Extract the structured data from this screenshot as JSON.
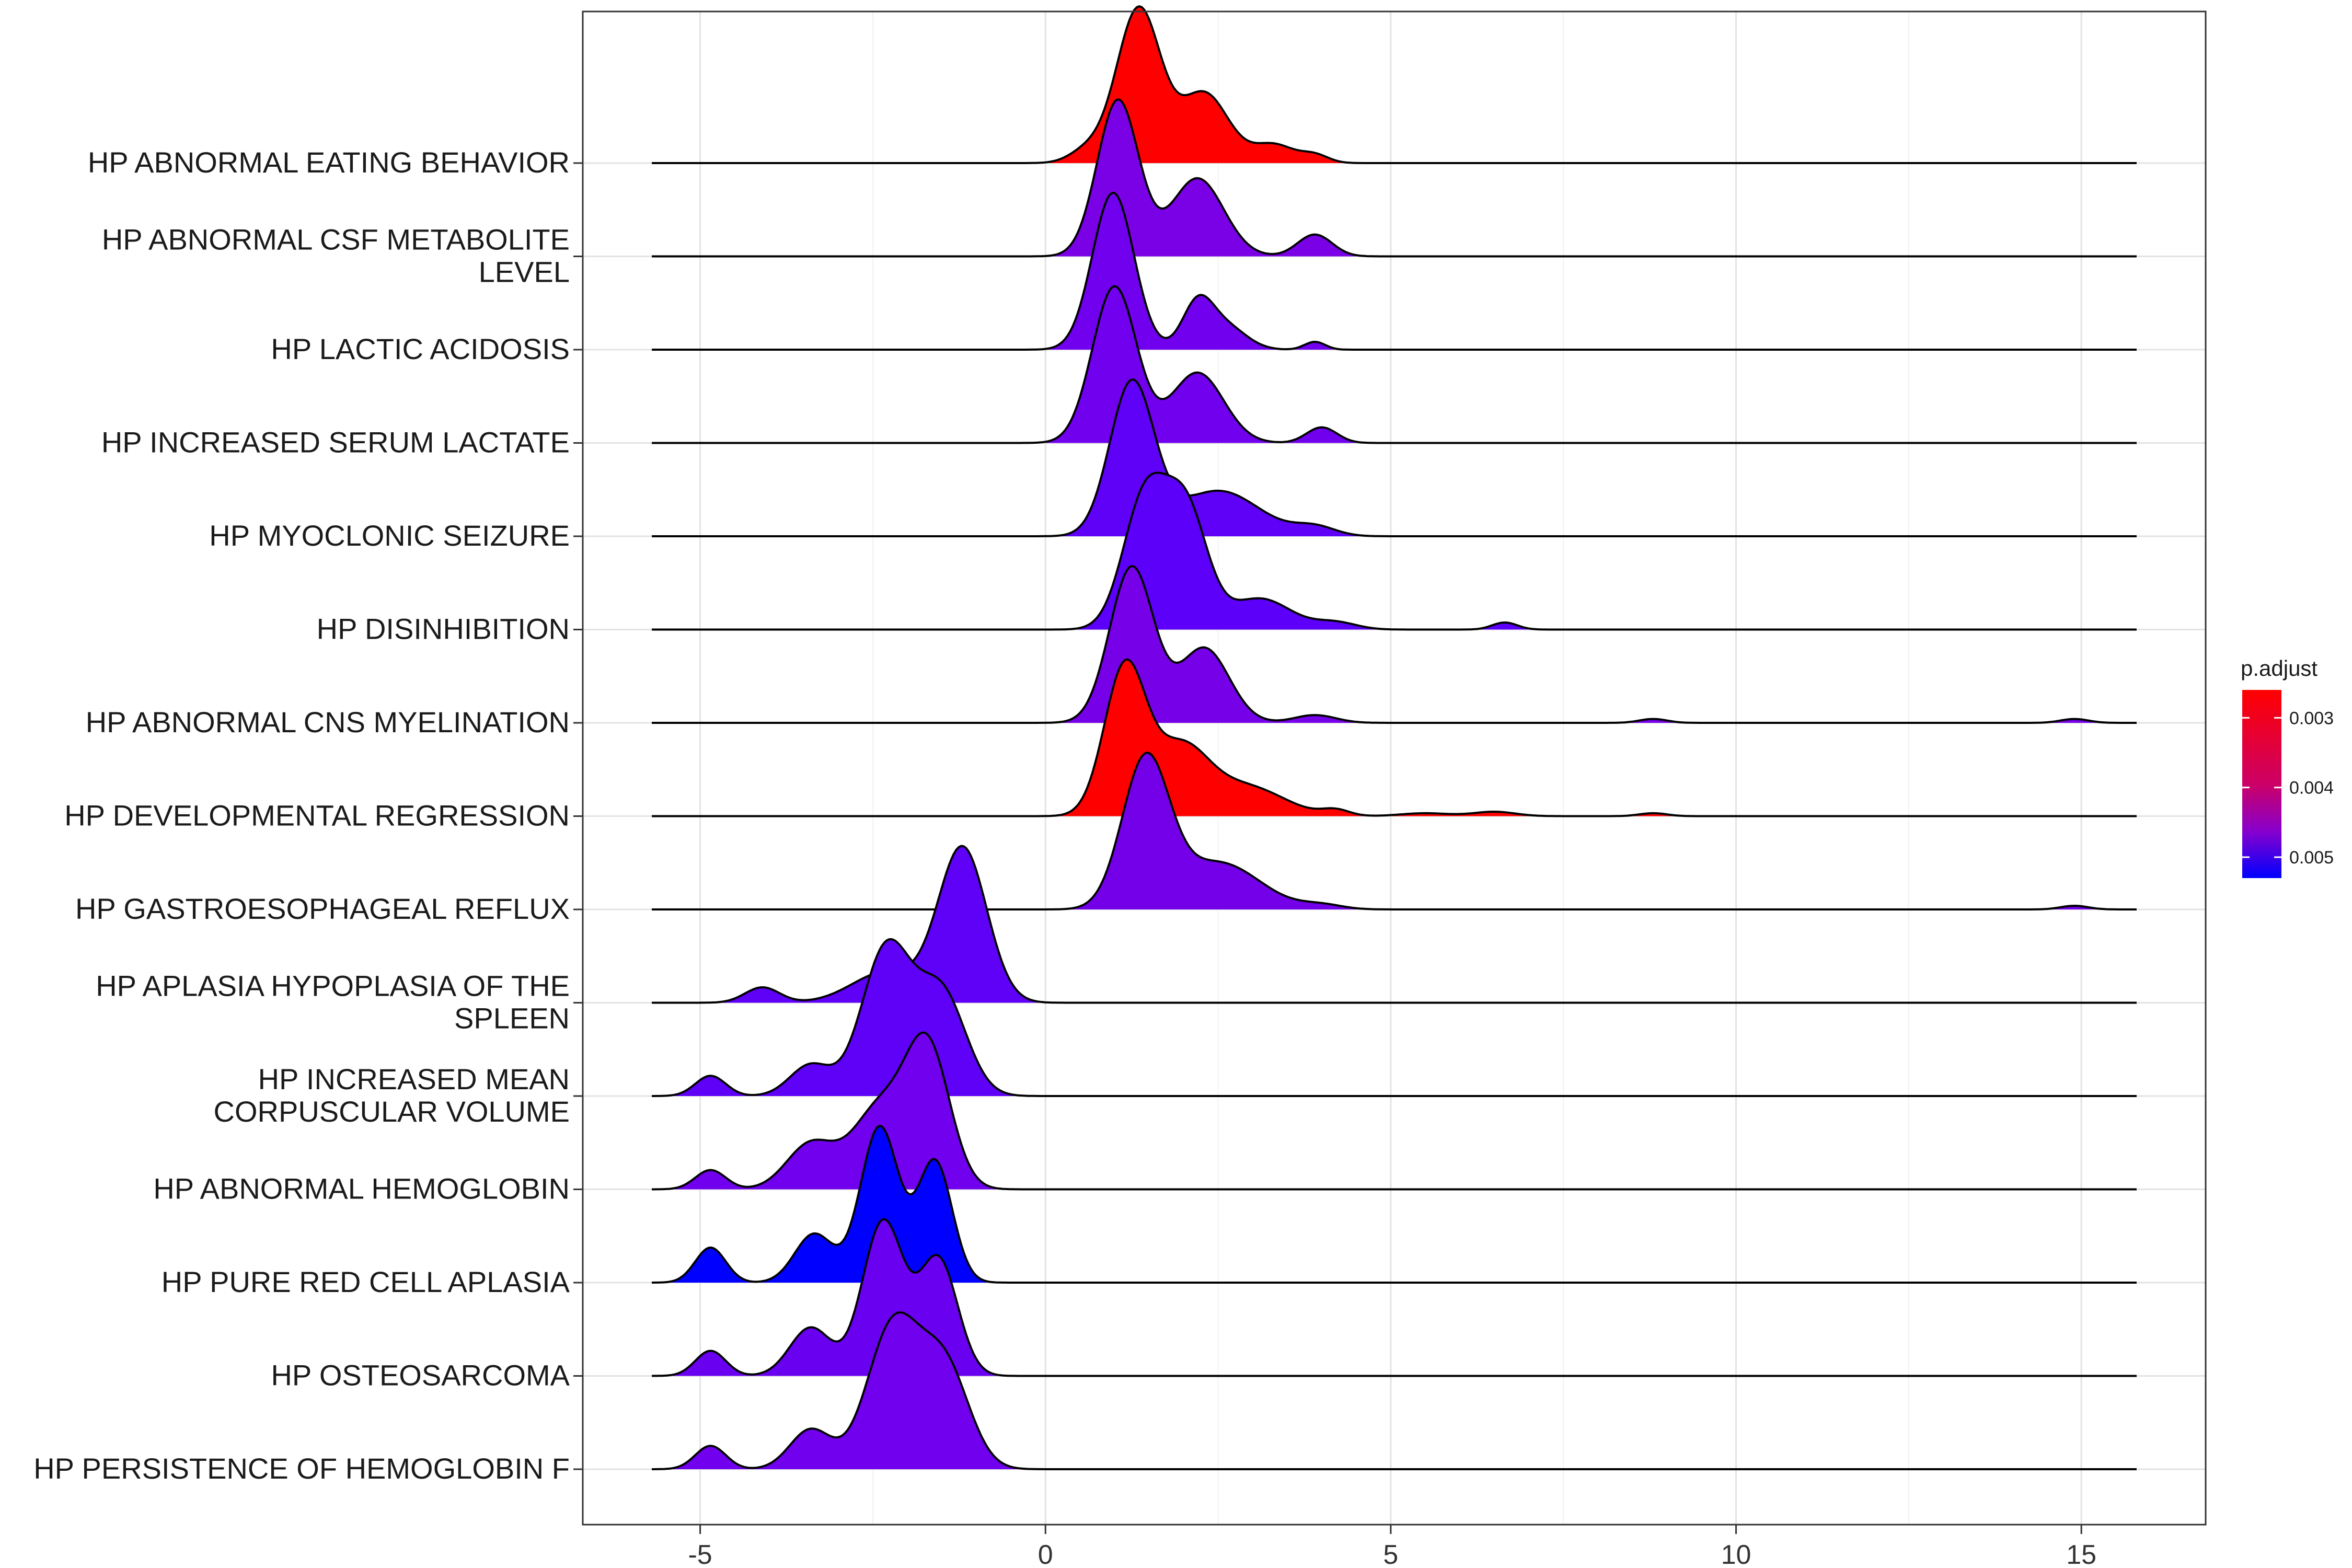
{
  "chart_data": {
    "type": "ridgeline",
    "title": "",
    "xlabel": "",
    "ylabel": "",
    "xlim": [
      -6.7,
      16.8
    ],
    "xticks": [
      -5,
      0,
      5,
      10,
      15
    ],
    "grid": true,
    "legend": {
      "title": "p.adjust",
      "placement": "right",
      "scale": "gradient",
      "low_color": "#ff0000",
      "high_color": "#0000ff",
      "range": [
        0.0026,
        0.0053
      ],
      "ticks": [
        "0.003",
        "0.004",
        "0.005"
      ],
      "tick_values": [
        0.003,
        0.004,
        0.005
      ]
    },
    "series": [
      {
        "name": "HP ABNORMAL EATING BEHAVIOR",
        "label_lines": [
          "HP ABNORMAL EATING BEHAVIOR"
        ],
        "p_adjust": 0.0026,
        "color": "#ff0000",
        "range": [
          -5.7,
          15.8
        ],
        "peaks": [
          [
            0.6,
            0.25,
            0.08
          ],
          [
            1.35,
            0.32,
            1.0
          ],
          [
            2.3,
            0.35,
            0.45
          ],
          [
            3.3,
            0.3,
            0.12
          ],
          [
            3.9,
            0.2,
            0.05
          ]
        ]
      },
      {
        "name": "HP ABNORMAL CSF METABOLITE LEVEL",
        "label_lines": [
          "HP ABNORMAL CSF METABOLITE",
          "LEVEL"
        ],
        "p_adjust": 0.0046,
        "color": "#7a00e6",
        "range": [
          -5.7,
          15.8
        ],
        "peaks": [
          [
            1.05,
            0.3,
            1.0
          ],
          [
            2.2,
            0.38,
            0.5
          ],
          [
            3.9,
            0.25,
            0.14
          ]
        ]
      },
      {
        "name": "HP LACTIC ACIDOSIS",
        "label_lines": [
          "HP LACTIC ACIDOSIS"
        ],
        "p_adjust": 0.0047,
        "color": "#7000ed",
        "range": [
          -5.7,
          15.8
        ],
        "peaks": [
          [
            0.98,
            0.3,
            1.0
          ],
          [
            2.2,
            0.22,
            0.28
          ],
          [
            2.6,
            0.3,
            0.15
          ],
          [
            3.9,
            0.15,
            0.05
          ]
        ]
      },
      {
        "name": "HP INCREASED SERUM LACTATE",
        "label_lines": [
          "HP INCREASED SERUM LACTATE"
        ],
        "p_adjust": 0.0047,
        "color": "#7000ed",
        "range": [
          -5.7,
          15.8
        ],
        "peaks": [
          [
            1.0,
            0.32,
            1.0
          ],
          [
            2.2,
            0.38,
            0.45
          ],
          [
            4.0,
            0.22,
            0.1
          ]
        ]
      },
      {
        "name": "HP MYOCLONIC SEIZURE",
        "label_lines": [
          "HP MYOCLONIC SEIZURE"
        ],
        "p_adjust": 0.0051,
        "color": "#5f00f7",
        "range": [
          -5.7,
          15.8
        ],
        "peaks": [
          [
            1.25,
            0.32,
            1.0
          ],
          [
            2.5,
            0.6,
            0.3
          ],
          [
            3.9,
            0.3,
            0.06
          ]
        ]
      },
      {
        "name": "HP DISINHIBITION",
        "label_lines": [
          "HP DISINHIBITION"
        ],
        "p_adjust": 0.0051,
        "color": "#5c00f9",
        "range": [
          -5.7,
          15.8
        ],
        "peaks": [
          [
            1.45,
            0.32,
            0.95
          ],
          [
            2.05,
            0.3,
            0.8
          ],
          [
            3.1,
            0.45,
            0.22
          ],
          [
            4.2,
            0.3,
            0.05
          ],
          [
            6.65,
            0.18,
            0.05
          ]
        ]
      },
      {
        "name": "HP ABNORMAL CNS MYELINATION",
        "label_lines": [
          "HP ABNORMAL CNS MYELINATION"
        ],
        "p_adjust": 0.0047,
        "color": "#7600e8",
        "range": [
          -5.7,
          15.8
        ],
        "peaks": [
          [
            1.25,
            0.32,
            1.0
          ],
          [
            2.3,
            0.36,
            0.48
          ],
          [
            3.9,
            0.3,
            0.05
          ],
          [
            8.8,
            0.2,
            0.025
          ],
          [
            14.9,
            0.2,
            0.025
          ]
        ]
      },
      {
        "name": "HP DEVELOPMENTAL REGRESSION",
        "label_lines": [
          "HP DEVELOPMENTAL REGRESSION"
        ],
        "p_adjust": 0.0026,
        "color": "#ff0000",
        "range": [
          -5.7,
          15.8
        ],
        "peaks": [
          [
            1.15,
            0.3,
            1.0
          ],
          [
            1.95,
            0.4,
            0.45
          ],
          [
            2.9,
            0.55,
            0.2
          ],
          [
            4.2,
            0.2,
            0.04
          ],
          [
            5.5,
            0.35,
            0.02
          ],
          [
            6.5,
            0.3,
            0.03
          ],
          [
            8.8,
            0.2,
            0.02
          ]
        ]
      },
      {
        "name": "HP GASTROESOPHAGEAL REFLUX",
        "label_lines": [
          "HP GASTROESOPHAGEAL REFLUX"
        ],
        "p_adjust": 0.0047,
        "color": "#7400ea",
        "range": [
          -5.7,
          15.8
        ],
        "peaks": [
          [
            1.45,
            0.34,
            1.0
          ],
          [
            2.5,
            0.6,
            0.32
          ],
          [
            4.0,
            0.3,
            0.03
          ],
          [
            14.9,
            0.2,
            0.025
          ]
        ]
      },
      {
        "name": "HP APLASIA HYPOPLASIA OF THE SPLEEN",
        "label_lines": [
          "HP APLASIA HYPOPLASIA OF THE",
          "SPLEEN"
        ],
        "p_adjust": 0.0051,
        "color": "#5f00f7",
        "range": [
          -5.7,
          15.8
        ],
        "peaks": [
          [
            -1.2,
            0.35,
            1.0
          ],
          [
            -2.3,
            0.5,
            0.2
          ],
          [
            -4.1,
            0.25,
            0.1
          ]
        ]
      },
      {
        "name": "HP INCREASED MEAN CORPUSCULAR VOLUME",
        "label_lines": [
          "HP INCREASED MEAN",
          "CORPUSCULAR VOLUME"
        ],
        "p_adjust": 0.0051,
        "color": "#5f00f7",
        "range": [
          -5.7,
          15.8
        ],
        "peaks": [
          [
            -2.3,
            0.36,
            0.95
          ],
          [
            -1.5,
            0.35,
            0.65
          ],
          [
            -3.4,
            0.3,
            0.2
          ],
          [
            -4.85,
            0.22,
            0.13
          ]
        ]
      },
      {
        "name": "HP ABNORMAL HEMOGLOBIN",
        "label_lines": [
          "HP ABNORMAL HEMOGLOBIN"
        ],
        "p_adjust": 0.0047,
        "color": "#7000ed",
        "range": [
          -5.7,
          15.8
        ],
        "peaks": [
          [
            -1.7,
            0.32,
            0.85
          ],
          [
            -2.4,
            0.4,
            0.5
          ],
          [
            -3.4,
            0.35,
            0.28
          ],
          [
            -4.85,
            0.22,
            0.12
          ]
        ]
      },
      {
        "name": "HP PURE RED CELL APLASIA",
        "label_lines": [
          "HP PURE RED CELL APLASIA"
        ],
        "p_adjust": 0.0053,
        "color": "#0000ff",
        "range": [
          -5.7,
          15.8
        ],
        "peaks": [
          [
            -2.4,
            0.28,
            0.8
          ],
          [
            -1.6,
            0.25,
            0.62
          ],
          [
            -3.35,
            0.28,
            0.25
          ],
          [
            -4.85,
            0.22,
            0.18
          ]
        ]
      },
      {
        "name": "HP OSTEOSARCOMA",
        "label_lines": [
          "HP OSTEOSARCOMA"
        ],
        "p_adjust": 0.0048,
        "color": "#6a00f0",
        "range": [
          -5.7,
          15.8
        ],
        "peaks": [
          [
            -2.35,
            0.3,
            0.8
          ],
          [
            -1.55,
            0.28,
            0.6
          ],
          [
            -3.4,
            0.3,
            0.25
          ],
          [
            -4.85,
            0.22,
            0.13
          ]
        ]
      },
      {
        "name": "HP PERSISTENCE OF HEMOGLOBIN F",
        "label_lines": [
          "HP PERSISTENCE OF HEMOGLOBIN F"
        ],
        "p_adjust": 0.0047,
        "color": "#7000ed",
        "range": [
          -5.7,
          15.8
        ],
        "peaks": [
          [
            -2.2,
            0.38,
            0.8
          ],
          [
            -1.45,
            0.35,
            0.55
          ],
          [
            -3.4,
            0.3,
            0.22
          ],
          [
            -4.85,
            0.22,
            0.13
          ]
        ]
      }
    ]
  }
}
